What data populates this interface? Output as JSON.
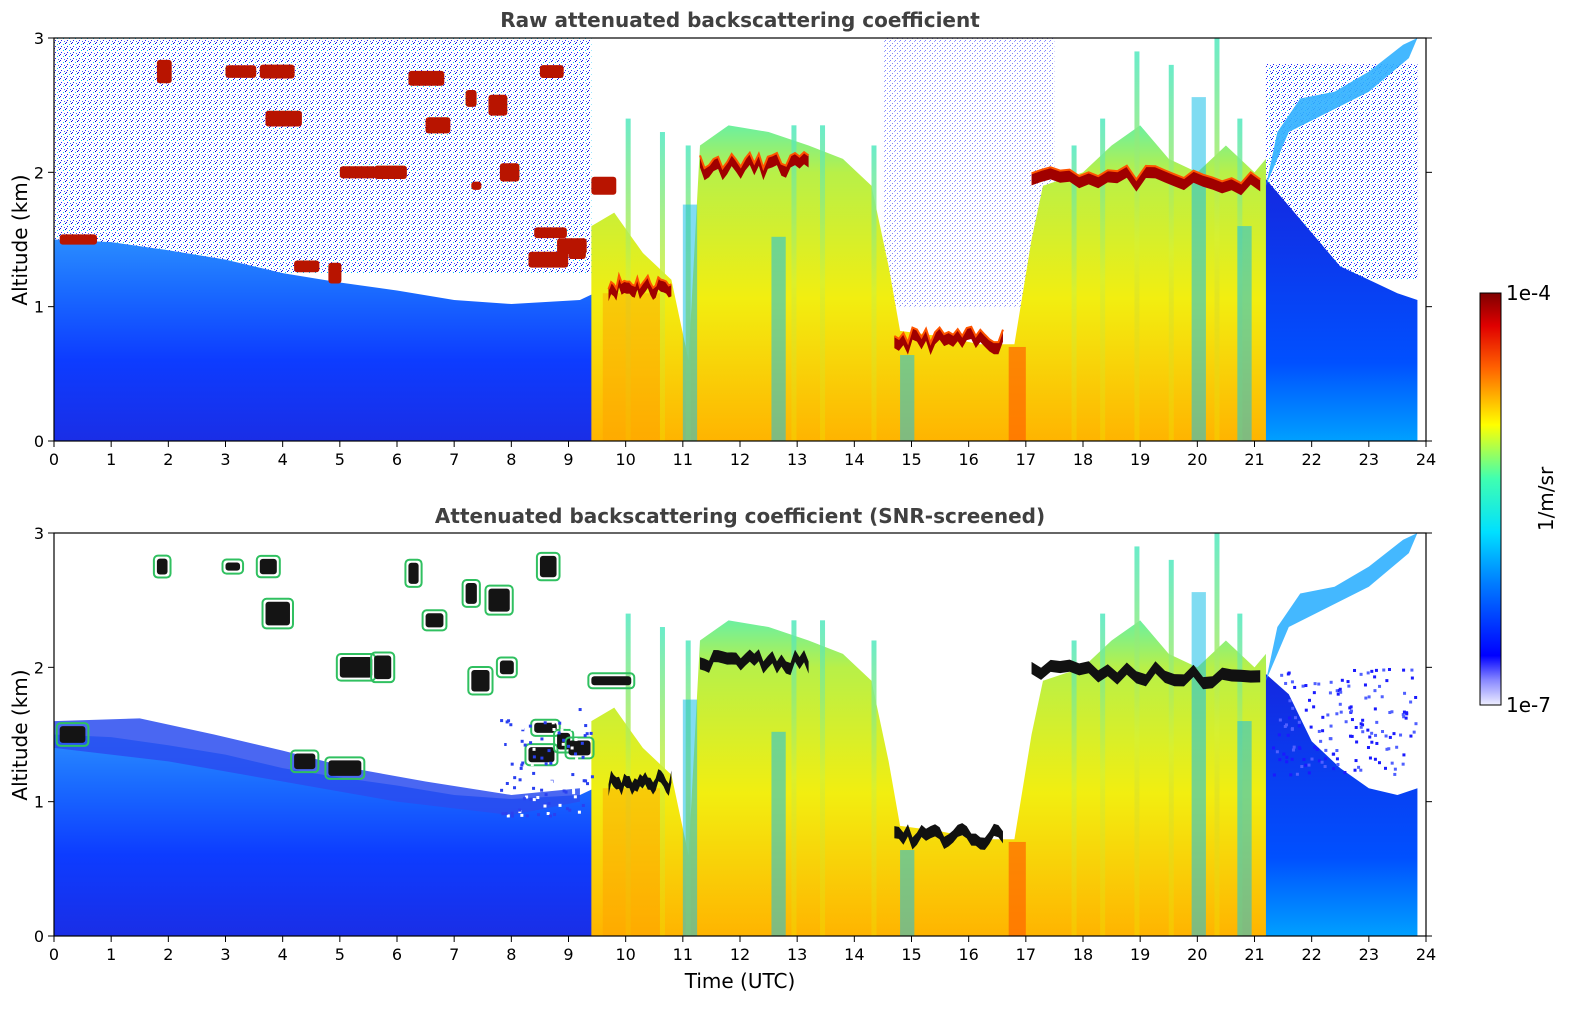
{
  "chart_data": [
    {
      "type": "heatmap",
      "title": "Raw attenuated backscattering coefficient",
      "xlabel": "",
      "ylabel": "Altitude (km)",
      "xlim": [
        0,
        24
      ],
      "ylim": [
        0,
        3
      ],
      "xticks": [
        "0",
        "1",
        "2",
        "3",
        "4",
        "5",
        "6",
        "7",
        "8",
        "9",
        "10",
        "11",
        "12",
        "13",
        "14",
        "15",
        "16",
        "17",
        "18",
        "19",
        "20",
        "21",
        "22",
        "23",
        "24"
      ],
      "yticks": [
        "0",
        "1",
        "2",
        "3"
      ],
      "screened": false,
      "features": {
        "boundary_layer_top_km": [
          [
            0,
            1.45
          ],
          [
            3,
            1.3
          ],
          [
            6,
            1.15
          ],
          [
            9.3,
            1.0
          ]
        ],
        "dense_aerosol_period_h": [
          9.4,
          21.2
        ],
        "cloud_layers": [
          {
            "t0": 9.7,
            "t1": 10.8,
            "alt_km": 1.15
          },
          {
            "t0": 11.3,
            "t1": 13.2,
            "alt_km": 2.05
          },
          {
            "t0": 14.7,
            "t1": 16.6,
            "alt_km": 0.75
          },
          {
            "t0": 17.1,
            "t1": 21.1,
            "alt_km": 1.9
          }
        ]
      }
    },
    {
      "type": "heatmap",
      "title": "Attenuated backscattering coefficient (SNR-screened)",
      "xlabel": "Time (UTC)",
      "ylabel": "Altitude (km)",
      "xlim": [
        0,
        24
      ],
      "ylim": [
        0,
        3
      ],
      "xticks": [
        "0",
        "1",
        "2",
        "3",
        "4",
        "5",
        "6",
        "7",
        "8",
        "9",
        "10",
        "11",
        "12",
        "13",
        "14",
        "15",
        "16",
        "17",
        "18",
        "19",
        "20",
        "21",
        "22",
        "23",
        "24"
      ],
      "yticks": [
        "0",
        "1",
        "2",
        "3"
      ],
      "screened": true
    }
  ],
  "colorbar": {
    "label": "1/m/sr",
    "max_label": "1e-4",
    "min_label": "1e-7",
    "scale": "log",
    "colormap": "jet",
    "colors": [
      "#eeeeff",
      "#0000ff",
      "#00ccff",
      "#ffff00",
      "#ff3300",
      "#7f0000"
    ]
  }
}
